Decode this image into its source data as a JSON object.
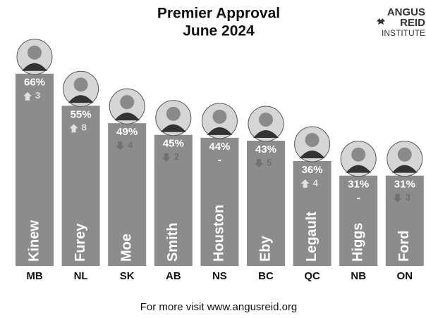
{
  "chart_data": {
    "type": "bar",
    "title": "Premier Approval",
    "subtitle": "June 2024",
    "logo": [
      "ANGUS",
      "REID",
      "INSTITUTE"
    ],
    "footer": "For more visit www.angusreid.org",
    "categories": [
      "MB",
      "NL",
      "SK",
      "AB",
      "NS",
      "BC",
      "QC",
      "NB",
      "ON"
    ],
    "names": [
      "Kinew",
      "Furey",
      "Moe",
      "Smith",
      "Houston",
      "Eby",
      "Legault",
      "Higgs",
      "Ford"
    ],
    "values": [
      66,
      55,
      49,
      45,
      44,
      43,
      36,
      31,
      31
    ],
    "value_labels": [
      "66%",
      "55%",
      "49%",
      "45%",
      "44%",
      "43%",
      "36%",
      "31%",
      "31%"
    ],
    "changes": [
      3,
      8,
      -4,
      -2,
      0,
      -5,
      4,
      0,
      -3
    ],
    "change_labels": [
      "3",
      "8",
      "4",
      "2",
      "-",
      "5",
      "4",
      "-",
      "3"
    ],
    "color": "#8c8c8c"
  }
}
